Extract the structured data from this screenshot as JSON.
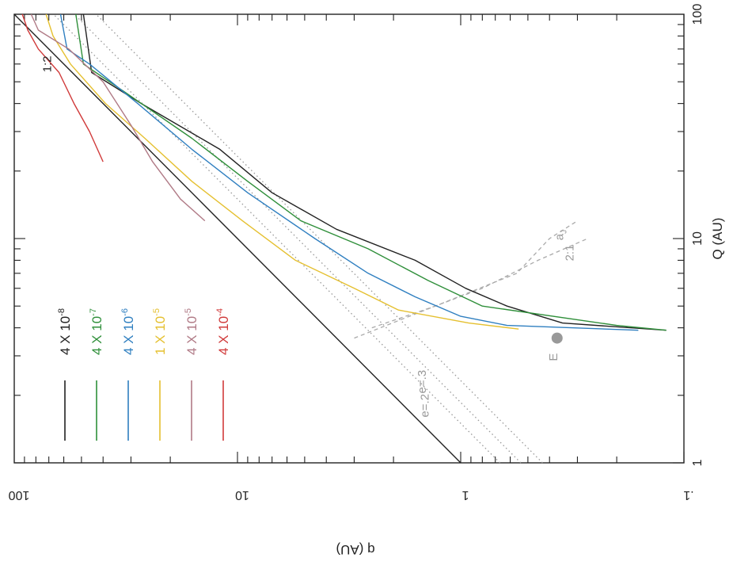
{
  "chart_data": {
    "type": "line",
    "orientation_note": "",
    "xlabel": "Q (AU)",
    "ylabel": "q (AU)",
    "xscale": "log",
    "yscale": "log",
    "xlim": [
      1,
      100
    ],
    "ylim": [
      0.1,
      100
    ],
    "x_ticks": [
      {
        "value": 1,
        "label": "1"
      },
      {
        "value": 10,
        "label": "10"
      },
      {
        "value": 100,
        "label": "100"
      }
    ],
    "y_ticks": [
      {
        "value": 0.1,
        "label": ".1"
      },
      {
        "value": 1,
        "label": "1"
      },
      {
        "value": 10,
        "label": "10"
      },
      {
        "value": 100,
        "label": "100"
      }
    ],
    "reference_lines": [
      {
        "label": "1:2",
        "style": "solid",
        "color": "#222222",
        "points": [
          [
            1,
            1
          ],
          [
            100,
            100
          ]
        ]
      },
      {
        "label": "e=.2",
        "style": "dotted",
        "color": "#999999",
        "points": [
          [
            1,
            0.667
          ],
          [
            100,
            66.7
          ]
        ]
      },
      {
        "label": "e=.3",
        "style": "dotted",
        "color": "#999999",
        "points": [
          [
            1,
            0.538
          ],
          [
            100,
            53.8
          ]
        ]
      },
      {
        "label": "",
        "style": "dotted",
        "color": "#999999",
        "points": [
          [
            1,
            0.43
          ],
          [
            100,
            43
          ]
        ]
      },
      {
        "label": "a",
        "label_subscript": "J",
        "style": "dashed",
        "color": "#aaaaaa",
        "points": [
          [
            3.6,
            3.0
          ],
          [
            5,
            1.3
          ],
          [
            7,
            0.56
          ],
          [
            10,
            0.4
          ],
          [
            12,
            0.3
          ]
        ]
      },
      {
        "label": "2:1",
        "style": "dashed",
        "color": "#aaaaaa",
        "points": [
          [
            4.0,
            2.5
          ],
          [
            5,
            1.3
          ],
          [
            6,
            0.8
          ],
          [
            8,
            0.45
          ],
          [
            10,
            0.27
          ]
        ]
      }
    ],
    "markers": [
      {
        "label": "E",
        "x": 3.6,
        "y": 0.37,
        "color": "#999999"
      }
    ],
    "legend": {
      "placement": "top-left",
      "entries": [
        {
          "label": "4 X 10",
          "exponent": "-8",
          "color": "#222222"
        },
        {
          "label": "4 X 10",
          "exponent": "-7",
          "color": "#2f8f3a"
        },
        {
          "label": "4 X 10",
          "exponent": "-6",
          "color": "#2f7fc0"
        },
        {
          "label": "1 X 10",
          "exponent": "-5",
          "color": "#e5c030"
        },
        {
          "label": "4 X 10",
          "exponent": "-5",
          "color": "#b07a86"
        },
        {
          "label": "4 X 10",
          "exponent": "-4",
          "color": "#d03a3a"
        }
      ]
    },
    "series": [
      {
        "name": "4 X 10-8",
        "color": "#222222",
        "points": [
          [
            100,
            49
          ],
          [
            55,
            45
          ],
          [
            40,
            27
          ],
          [
            25,
            12
          ],
          [
            16,
            7
          ],
          [
            11,
            3.6
          ],
          [
            8,
            1.6
          ],
          [
            6,
            0.95
          ],
          [
            5,
            0.62
          ],
          [
            4.2,
            0.35
          ],
          [
            3.9,
            0.12
          ]
        ]
      },
      {
        "name": "4 X 10-7",
        "color": "#2f8f3a",
        "points": [
          [
            100,
            53
          ],
          [
            60,
            49
          ],
          [
            45,
            32
          ],
          [
            28,
            16
          ],
          [
            18,
            9
          ],
          [
            12,
            5.2
          ],
          [
            9,
            2.6
          ],
          [
            6.5,
            1.4
          ],
          [
            5,
            0.8
          ],
          [
            4.1,
            0.2
          ],
          [
            3.9,
            0.12
          ]
        ]
      },
      {
        "name": "4 X 10-6",
        "color": "#2f7fc0",
        "points": [
          [
            100,
            62
          ],
          [
            70,
            58
          ],
          [
            60,
            46
          ],
          [
            40,
            28
          ],
          [
            25,
            16
          ],
          [
            16,
            9
          ],
          [
            10,
            4.5
          ],
          [
            7,
            2.6
          ],
          [
            5.5,
            1.6
          ],
          [
            4.5,
            1.0
          ],
          [
            4.1,
            0.62
          ],
          [
            3.9,
            0.16
          ]
        ]
      },
      {
        "name": "1 X 10-5",
        "color": "#e5c030",
        "points": [
          [
            100,
            72
          ],
          [
            80,
            67
          ],
          [
            60,
            56
          ],
          [
            40,
            39
          ],
          [
            28,
            26
          ],
          [
            18,
            16
          ],
          [
            12,
            9.5
          ],
          [
            8,
            5.5
          ],
          [
            6,
            3.0
          ],
          [
            4.8,
            1.9
          ],
          [
            4.2,
            0.92
          ],
          [
            3.95,
            0.55
          ]
        ]
      },
      {
        "name": "4 X 10-5",
        "color": "#b07a86",
        "points": [
          [
            100,
            84
          ],
          [
            85,
            78
          ],
          [
            70,
            57
          ],
          [
            50,
            40
          ],
          [
            32,
            30
          ],
          [
            22,
            24
          ],
          [
            15,
            18
          ],
          [
            12,
            14
          ]
        ]
      },
      {
        "name": "4 X 10-4",
        "color": "#d03a3a",
        "points": [
          [
            100,
            92
          ],
          [
            85,
            87
          ],
          [
            70,
            78
          ],
          [
            55,
            63
          ],
          [
            40,
            54
          ],
          [
            30,
            46
          ],
          [
            22,
            40
          ]
        ]
      }
    ]
  }
}
